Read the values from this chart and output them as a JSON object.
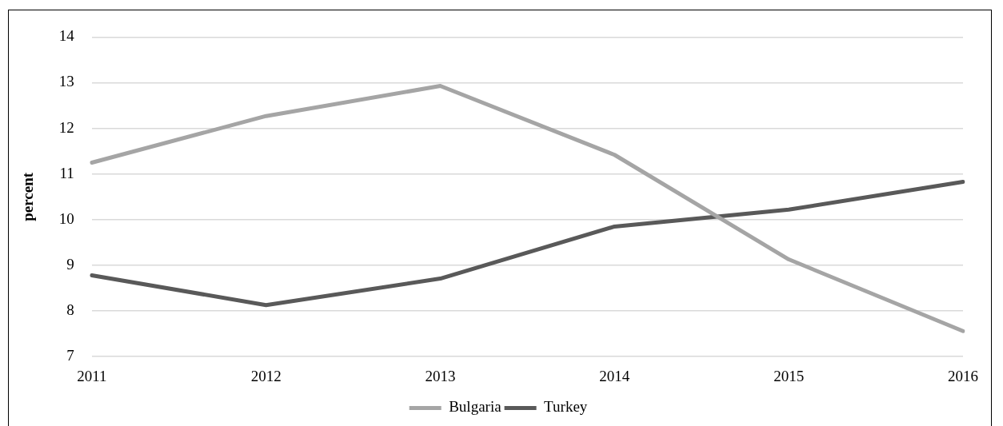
{
  "chart_data": {
    "type": "line",
    "ylabel": "percent",
    "categories": [
      "2011",
      "2012",
      "2013",
      "2014",
      "2015",
      "2016"
    ],
    "series": [
      {
        "name": "Bulgaria",
        "color": "#a5a5a5",
        "values": [
          11.25,
          12.27,
          12.93,
          11.42,
          9.13,
          7.56
        ]
      },
      {
        "name": "Turkey",
        "color": "#595959",
        "values": [
          8.78,
          8.13,
          8.71,
          9.85,
          10.22,
          10.83
        ]
      }
    ],
    "ylim": [
      7,
      14
    ],
    "yticks": [
      7,
      8,
      9,
      10,
      11,
      12,
      13,
      14
    ],
    "grid": "y",
    "legend": "bottom",
    "marker": "none",
    "line_style": "solid"
  }
}
